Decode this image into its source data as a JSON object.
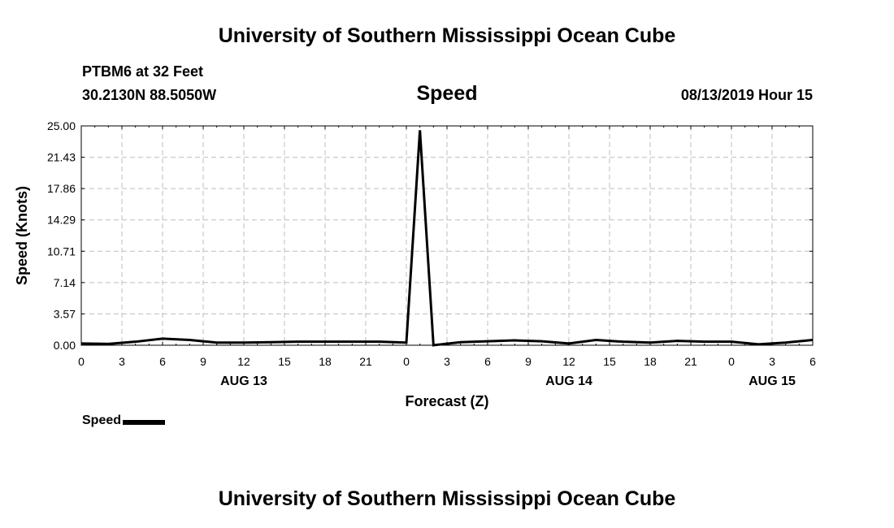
{
  "header": {
    "title": "University of Southern Mississippi Ocean Cube",
    "station": "PTBM6 at 32 Feet",
    "coords": "30.2130N 88.5050W",
    "panel_title": "Speed",
    "datetime": "08/13/2019 Hour 15"
  },
  "footer": {
    "title": "University of Southern Mississippi Ocean Cube"
  },
  "legend": {
    "label": "Speed"
  },
  "chart_data": {
    "type": "line",
    "title": "Speed",
    "xlabel": "Forecast (Z)",
    "ylabel": "Speed (Knots)",
    "ylim": [
      0,
      25
    ],
    "xlim": [
      0,
      54
    ],
    "grid": true,
    "legend_position": "bottom-left",
    "y_ticks": [
      "0.00",
      "3.57",
      "7.14",
      "10.71",
      "14.29",
      "17.86",
      "21.43",
      "25.00"
    ],
    "x_ticks": [
      "0",
      "3",
      "6",
      "9",
      "12",
      "15",
      "18",
      "21",
      "0",
      "3",
      "6",
      "9",
      "12",
      "15",
      "18",
      "21",
      "0",
      "3",
      "6"
    ],
    "date_labels": [
      {
        "label": "AUG 13",
        "hour": 12
      },
      {
        "label": "AUG 14",
        "hour": 36
      },
      {
        "label": "AUG 15",
        "hour": 51
      }
    ],
    "series": [
      {
        "name": "Speed",
        "color": "#000000",
        "x": [
          0,
          2,
          4,
          6,
          8,
          10,
          12,
          14,
          16,
          18,
          20,
          22,
          24,
          25,
          26,
          28,
          30,
          32,
          34,
          36,
          38,
          40,
          42,
          44,
          46,
          48,
          50,
          52,
          54
        ],
        "y": [
          0.2,
          0.15,
          0.4,
          0.75,
          0.6,
          0.3,
          0.3,
          0.35,
          0.4,
          0.4,
          0.4,
          0.4,
          0.3,
          24.5,
          0.0,
          0.35,
          0.45,
          0.55,
          0.45,
          0.2,
          0.6,
          0.4,
          0.3,
          0.5,
          0.4,
          0.4,
          0.1,
          0.3,
          0.6
        ]
      }
    ]
  }
}
